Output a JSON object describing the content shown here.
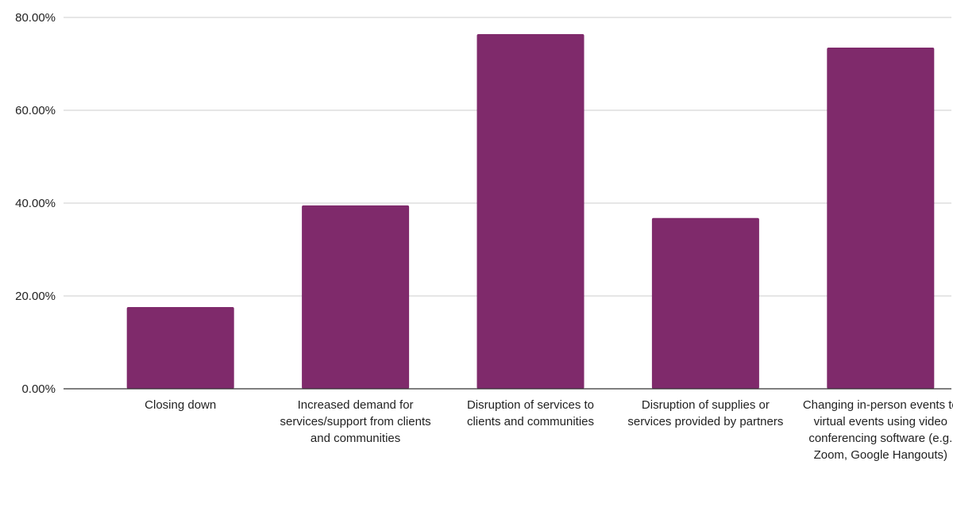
{
  "chart_data": {
    "type": "bar",
    "categories": [
      "Closing down",
      "Increased demand for services/support from clients and communities",
      "Disruption of services to clients and communities",
      "Disruption of supplies or services provided by partners",
      "Changing in-person events to virtual events using video conferencing software (e.g. Zoom, Google Hangouts)"
    ],
    "values": [
      17.6,
      39.5,
      76.4,
      36.8,
      73.5
    ],
    "ylim": [
      0,
      80
    ],
    "yticks": [
      "0.00%",
      "20.00%",
      "40.00%",
      "60.00%",
      "80.00%"
    ],
    "title": "",
    "xlabel": "",
    "ylabel": "",
    "grid": true,
    "bar_color": "#7f2a6b"
  }
}
